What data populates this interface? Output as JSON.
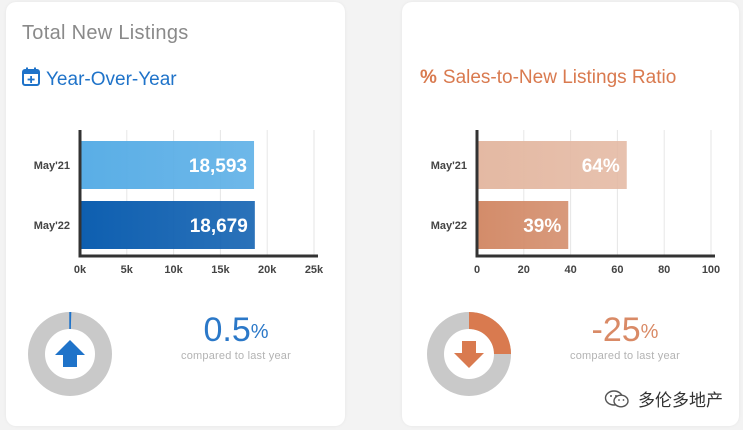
{
  "left_card": {
    "title": "Total New Listings",
    "subtitle": "Year-Over-Year",
    "subtitle_icon": "calendar-plus-icon",
    "accent": "#1f73c9",
    "stat_value": "0.5",
    "stat_unit": "%",
    "stat_caption": "compared to last year",
    "stat_color": "#2b78c8",
    "donut_fraction": 0.005,
    "donut_arrow": "up"
  },
  "right_card": {
    "title": "",
    "subtitle": "Sales-to-New Listings Ratio",
    "subtitle_icon": "percent-icon",
    "accent": "#d97a4f",
    "stat_value": "-25",
    "stat_unit": "%",
    "stat_caption": "compared to last year",
    "stat_color": "#d98a66",
    "donut_fraction": 0.25,
    "donut_arrow": "down"
  },
  "watermark": {
    "text": "多伦多地产"
  },
  "chart_data": [
    {
      "type": "bar",
      "orientation": "horizontal",
      "categories": [
        "May'21",
        "May'22"
      ],
      "values": [
        18593,
        18679
      ],
      "labels": [
        "18,593",
        "18,679"
      ],
      "xlim": [
        0,
        25000
      ],
      "xticks": [
        "0k",
        "5k",
        "10k",
        "15k",
        "20k",
        "25k"
      ],
      "xtick_values": [
        0,
        5000,
        10000,
        15000,
        20000,
        25000
      ],
      "grid": true,
      "colors": [
        "#5aaee6",
        "#0e5fb0"
      ]
    },
    {
      "type": "bar",
      "orientation": "horizontal",
      "categories": [
        "May'21",
        "May'22"
      ],
      "values": [
        64,
        39
      ],
      "labels": [
        "64%",
        "39%"
      ],
      "xlim": [
        0,
        100
      ],
      "xticks": [
        "0",
        "20",
        "40",
        "60",
        "80",
        "100"
      ],
      "xtick_values": [
        0,
        20,
        40,
        60,
        80,
        100
      ],
      "grid": true,
      "colors": [
        "#e4b9a3",
        "#d38c6a"
      ]
    }
  ]
}
